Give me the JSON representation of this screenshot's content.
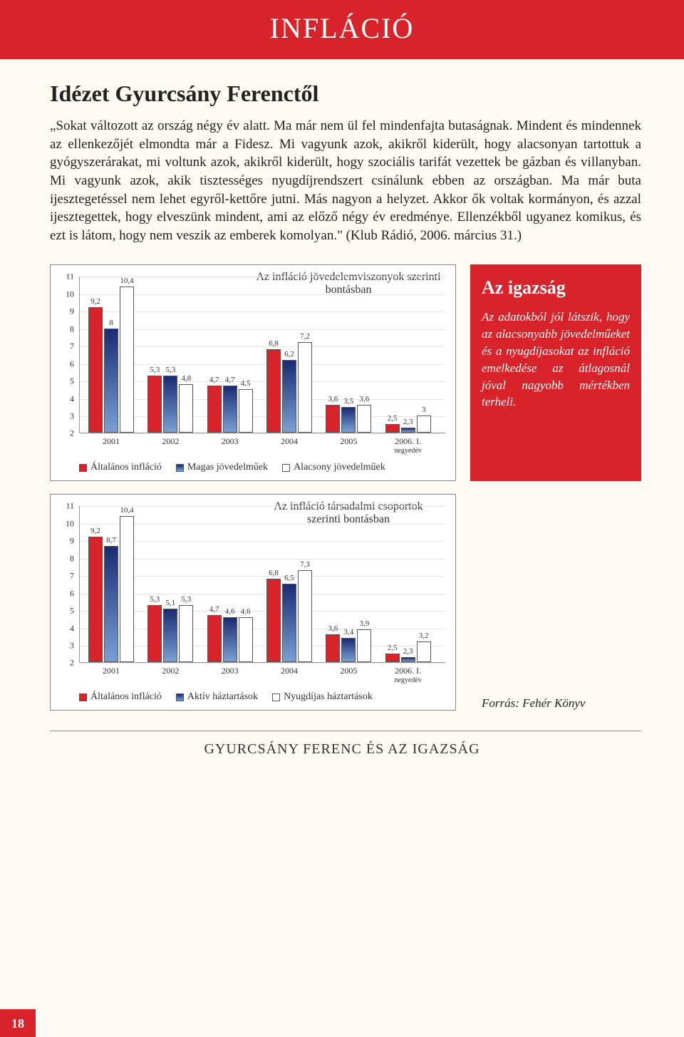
{
  "header": {
    "title": "INFLÁCIÓ"
  },
  "quote": {
    "title": "Idézet Gyurcsány Ferenctől",
    "body": "„Sokat változott az ország négy év alatt. Ma már nem ül fel mindenfajta butaságnak. Mindent és mindennek az ellenkezőjét elmondta már a Fidesz. Mi vagyunk azok, akikről kiderült, hogy alacsonyan tartottuk a gyógyszerárakat, mi voltunk azok, akikről kiderült, hogy szociális tarifát vezettek be gázban és villanyban. Mi vagyunk azok, akik tisztességes nyugdíjrendszert csinálunk ebben az országban. Ma már buta ijesztegetéssel nem lehet egyről-kettőre jutni. Más nagyon a helyzet. Akkor ők voltak kormányon, és azzal ijesztegettek, hogy elveszünk mindent, ami az előző négy év eredménye. Ellenzékből ugyanez komikus, és ezt is látom, hogy nem veszik az emberek komolyan.\" (Klub Rádió, 2006. március 31.)"
  },
  "sidebar": {
    "title": "Az igazság",
    "text": "Az adatokból jól látszik, hogy az alacsonyabb jövedelműeket és a nyugdíjasokat az infláció emelkedése az átlagosnál jóval nagyobb mértékben terheli."
  },
  "source": "Forrás: Fehér Könyv",
  "chart1": {
    "type": "bar",
    "title": "Az infláció jövedelemviszonyok szerinti bontásban",
    "ymin": 2,
    "ymax": 11,
    "ytick_step": 1,
    "colors": {
      "red": "#d8232a",
      "blue_top": "#1a2b74",
      "blue_bottom": "#7aa0d4",
      "white": "#ffffff",
      "border": "#555555",
      "grid": "#e4e4e4",
      "bg": "#ffffff"
    },
    "categories": [
      "2001",
      "2002",
      "2003",
      "2004",
      "2005",
      "2006. I."
    ],
    "cat_sub": [
      "",
      "",
      "",
      "",
      "",
      "negyedév"
    ],
    "series": [
      {
        "name": "Általános infláció",
        "values": [
          9.2,
          5.3,
          4.7,
          6.8,
          3.6,
          2.5
        ]
      },
      {
        "name": "Magas jövedelműek",
        "values": [
          8.0,
          5.3,
          4.7,
          6.2,
          3.5,
          2.3
        ]
      },
      {
        "name": "Alacsony jövedelműek",
        "values": [
          10.4,
          4.8,
          4.5,
          7.2,
          3.6,
          3.0
        ]
      }
    ],
    "legend": [
      "Általános infláció",
      "Magas jövedelműek",
      "Alacsony jövedelműek"
    ]
  },
  "chart2": {
    "type": "bar",
    "title": "Az infláció társadalmi csoportok szerinti bontásban",
    "ymin": 2,
    "ymax": 11,
    "ytick_step": 1,
    "categories": [
      "2001",
      "2002",
      "2003",
      "2004",
      "2005",
      "2006. I."
    ],
    "cat_sub": [
      "",
      "",
      "",
      "",
      "",
      "negyedév"
    ],
    "series": [
      {
        "name": "Általános infláció",
        "values": [
          9.2,
          5.3,
          4.7,
          6.8,
          3.6,
          2.5
        ]
      },
      {
        "name": "Aktív háztartások",
        "values": [
          8.7,
          5.1,
          4.6,
          6.5,
          3.4,
          2.3
        ]
      },
      {
        "name": "Nyugdíjas háztartások",
        "values": [
          10.4,
          5.3,
          4.6,
          7.3,
          3.9,
          3.2
        ]
      }
    ],
    "legend": [
      "Általános infláció",
      "Aktív háztartások",
      "Nyugdíjas háztartások"
    ]
  },
  "footer": {
    "text": "GYURCSÁNY FERENC ÉS AZ IGAZSÁG"
  },
  "page_number": "18"
}
